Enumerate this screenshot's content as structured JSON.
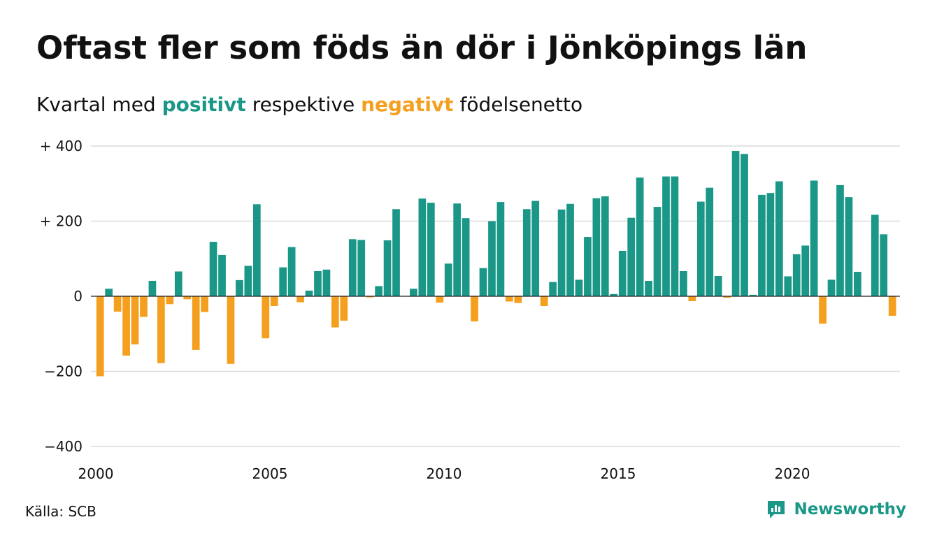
{
  "header": {
    "title": "Oftast fler som föds än dör i Jönköpings län",
    "subtitle_part1": "Kvartal med",
    "subtitle_positive": "positivt",
    "subtitle_part2": "respektive",
    "subtitle_negative": "negativt",
    "subtitle_part3": "födelsenetto"
  },
  "colors": {
    "positive": "#1a9787",
    "negative": "#f59f1f",
    "grid": "#dcdcdc",
    "brand": "#1a9787"
  },
  "footer": {
    "source": "Källa: SCB",
    "brand_name": "Newsworthy",
    "brand_icon": "bar-chart-speech-bubble-icon"
  },
  "chart_data": {
    "type": "bar",
    "title": "Oftast fler som föds än dör i Jönköpings län",
    "subtitle": "Kvartal med positivt respektive negativt födelsenetto",
    "xlabel": "",
    "ylabel": "",
    "x_start": 2000,
    "periods_per_year": 4,
    "ylim": [
      -400,
      400
    ],
    "yticks": [
      {
        "value": 400,
        "label": "+ 400"
      },
      {
        "value": 200,
        "label": "+ 200"
      },
      {
        "value": 0,
        "label": "0"
      },
      {
        "value": -200,
        "label": "−200"
      },
      {
        "value": -400,
        "label": "−400"
      }
    ],
    "xticks": [
      {
        "value": 2000,
        "label": "2000"
      },
      {
        "value": 2005,
        "label": "2005"
      },
      {
        "value": 2010,
        "label": "2010"
      },
      {
        "value": 2015,
        "label": "2015"
      },
      {
        "value": 2020,
        "label": "2020"
      }
    ],
    "grid": true,
    "values": [
      -213,
      20,
      -41,
      -158,
      -128,
      -55,
      41,
      -178,
      -21,
      66,
      -8,
      -143,
      -42,
      145,
      110,
      -180,
      43,
      81,
      245,
      -112,
      -26,
      77,
      131,
      -16,
      15,
      67,
      71,
      -83,
      -65,
      152,
      150,
      -3,
      27,
      149,
      232,
      0,
      20,
      260,
      249,
      -17,
      87,
      247,
      208,
      -67,
      75,
      200,
      251,
      -14,
      -18,
      232,
      254,
      -26,
      38,
      231,
      246,
      44,
      158,
      261,
      266,
      6,
      121,
      209,
      316,
      41,
      238,
      319,
      319,
      67,
      -13,
      252,
      289,
      54,
      -4,
      387,
      379,
      4,
      270,
      275,
      306,
      53,
      112,
      135,
      308,
      -73,
      44,
      296,
      264,
      65,
      0,
      217,
      165,
      -52
    ]
  }
}
